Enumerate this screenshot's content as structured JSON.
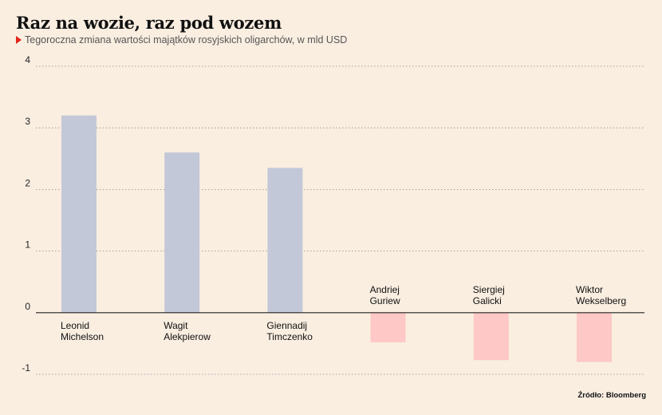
{
  "chart_data": {
    "type": "bar",
    "title": "Raz na wozie, raz pod wozem",
    "subtitle": "Tegoroczna zmiana wartości majątków rosyjskich oligarchów, w mld USD",
    "source": "Źródło: Bloomberg",
    "categories": [
      [
        "Leonid",
        "Michelson"
      ],
      [
        "Wagit",
        "Alekpierow"
      ],
      [
        "Giennadij",
        "Timczenko"
      ],
      [
        "Andriej",
        "Guriew"
      ],
      [
        "Siergiej",
        "Galicki"
      ],
      [
        "Wiktor",
        "Wekselberg"
      ]
    ],
    "values": [
      3.2,
      2.6,
      2.35,
      -0.48,
      -0.77,
      -0.8
    ],
    "yticks": [
      "4",
      "3",
      "2",
      "1",
      "0",
      "-1"
    ],
    "ylim": [
      -1,
      4
    ],
    "grid": true,
    "colors": {
      "positive": "#c3c8d8",
      "negative": "#fdc8c6",
      "accent": "#e0261b"
    }
  }
}
